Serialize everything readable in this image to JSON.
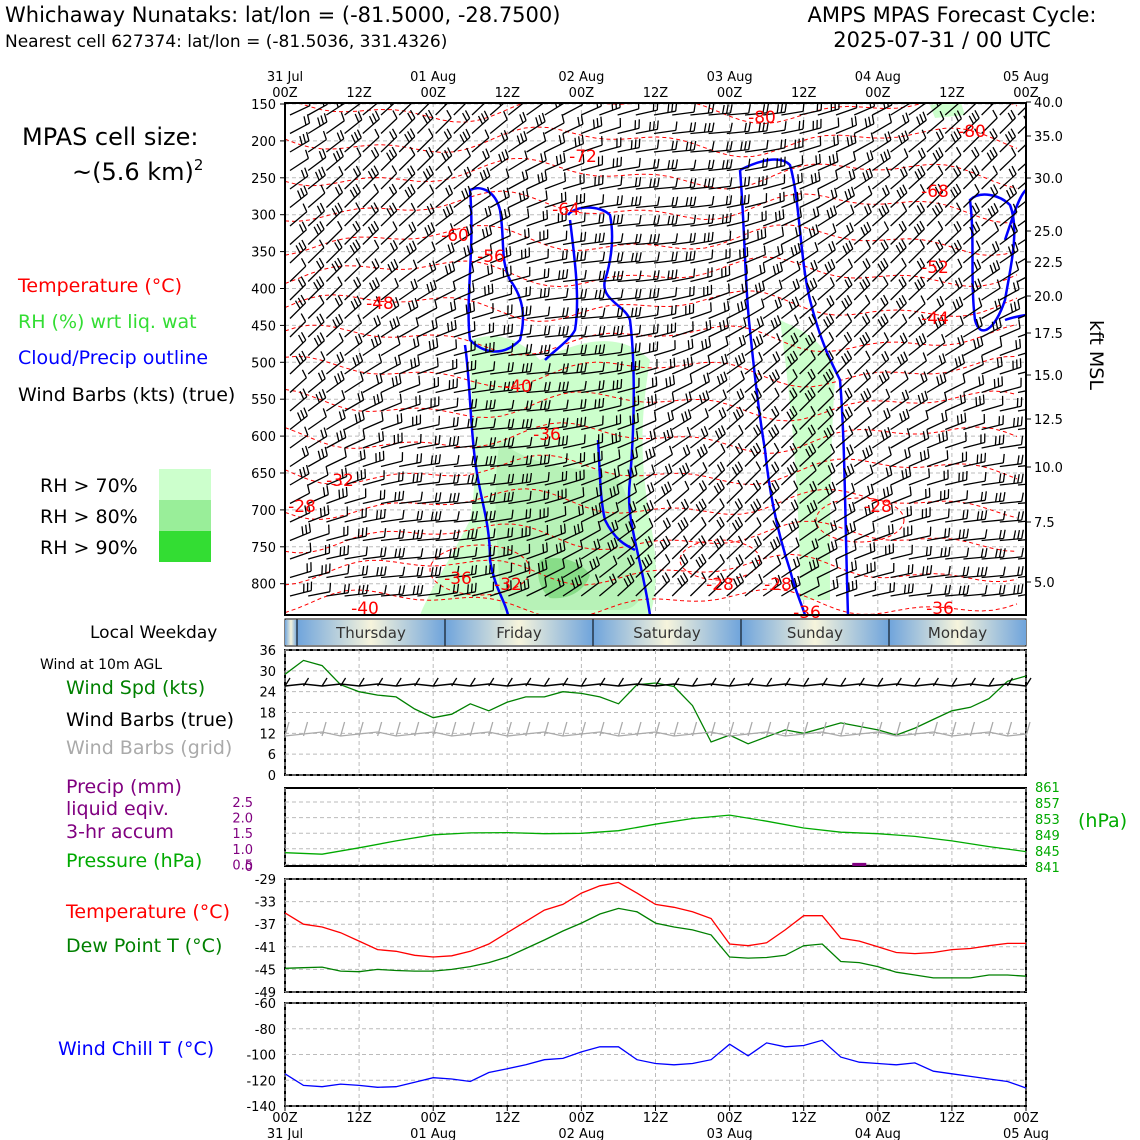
{
  "header": {
    "title_left": "Whichaway Nunataks: lat/lon = (-81.5000, -28.7500)",
    "subtitle_left": "Nearest cell 627374: lat/lon = (-81.5036, 331.4326)",
    "title_right_1": "AMPS MPAS Forecast Cycle:",
    "title_right_2": "2025-07-31 / 00 UTC",
    "cell_size_1": "MPAS cell size:",
    "cell_size_2": "~(5.6 km)",
    "cell_size_sup": "2"
  },
  "legend": {
    "temperature": "Temperature (°C)",
    "rh": "RH (%) wrt liq. wat",
    "cloud": "Cloud/Precip outline",
    "barbs": "Wind Barbs (kts) (true)",
    "rh70": "RH > 70%",
    "rh80": "RH > 80%",
    "rh90": "RH > 90%",
    "local_weekday": "Local Weekday",
    "wind10m": "Wind at 10m AGL",
    "wind_spd": "Wind Spd (kts)",
    "wind_barbs_true": "Wind Barbs (true)",
    "wind_barbs_grid": "Wind Barbs (grid)",
    "precip_1": "Precip (mm)",
    "precip_2": "liquid eqiv.",
    "precip_3": "3-hr accum",
    "pressure": "Pressure (hPa)",
    "hpa_unit": "(hPa)",
    "temp2": "Temperature (°C)",
    "dewpoint": "Dew Point T (°C)",
    "windchill": "Wind Chill T (°C)",
    "kft": "kft MSL"
  },
  "colors": {
    "temp": "#ff0000",
    "rh": "#33cc33",
    "cloud": "#0000ff",
    "dew": "#008000",
    "chill": "#0000ff",
    "precip": "#800080",
    "rh70": "#ccffcc",
    "rh80": "#99ee99",
    "rh90": "#33dd33"
  },
  "time_axis": {
    "top_dates": [
      "31 Jul",
      "",
      "01 Aug",
      "",
      "02 Aug",
      "",
      "03 Aug",
      "",
      "04 Aug",
      "",
      "05 Aug"
    ],
    "hours": [
      "00Z",
      "12Z",
      "00Z",
      "12Z",
      "00Z",
      "12Z",
      "00Z",
      "12Z",
      "00Z",
      "12Z",
      "00Z"
    ],
    "weekdays": [
      "Thursday",
      "Friday",
      "Saturday",
      "Sunday",
      "Monday"
    ]
  },
  "chart_data": [
    {
      "type": "line",
      "name": "Time-height cross section",
      "ylabel_right": "kft MSL",
      "pressure_ticks": [
        "150",
        "200",
        "250",
        "300",
        "350",
        "400",
        "450",
        "500",
        "550",
        "600",
        "650",
        "700",
        "750",
        "800"
      ],
      "kft_ticks": [
        "40.0",
        "35.0",
        "30.0",
        "25.0",
        "22.5",
        "20.0",
        "17.5",
        "15.0",
        "12.5",
        "10.0",
        "7.5",
        "5.0"
      ],
      "isotherm_labels": [
        "-80",
        "-80",
        "-72",
        "-68",
        "-64",
        "-60",
        "-56",
        "-52",
        "-48",
        "-44",
        "-40",
        "-36",
        "-32",
        "-28",
        "-28",
        "-36",
        "-32",
        "-28",
        "-28",
        "-36",
        "-40",
        "-36"
      ]
    },
    {
      "type": "line",
      "name": "Wind Spd (kts)",
      "ylim": [
        0,
        36
      ],
      "yticks": [
        "36",
        "30",
        "24",
        "18",
        "12",
        "6",
        "0"
      ],
      "x_hours": [
        0,
        3,
        6,
        9,
        12,
        15,
        18,
        21,
        24,
        27,
        30,
        33,
        36,
        39,
        42,
        45,
        48,
        51,
        54,
        57,
        60,
        63,
        66,
        69,
        72,
        75,
        78,
        81,
        84,
        87,
        90,
        93,
        96,
        99,
        102,
        105,
        108,
        111,
        114,
        117,
        120
      ],
      "values": [
        29,
        33,
        31.5,
        26,
        24,
        23,
        22.5,
        19,
        16.5,
        17.5,
        20.5,
        18.5,
        21,
        22.5,
        22.5,
        24,
        23.5,
        22.5,
        20.5,
        26,
        26.5,
        25.5,
        20,
        9.5,
        11.5,
        9,
        11,
        13,
        12,
        13.5,
        15,
        14,
        13,
        11.5,
        13.5,
        16,
        18.5,
        19.5,
        22,
        27,
        28.5
      ]
    },
    {
      "type": "line",
      "name": "Pressure (hPa)",
      "precip_yticks": [
        "2.5",
        "2.0",
        "1.5",
        "1.0",
        "0.5",
        "0"
      ],
      "pressure_yticks": [
        "861",
        "857",
        "853",
        "849",
        "845",
        "841"
      ],
      "pressure_ylim": [
        841,
        861
      ],
      "x_hours": [
        0,
        6,
        12,
        18,
        24,
        30,
        36,
        42,
        48,
        54,
        60,
        66,
        72,
        78,
        84,
        90,
        96,
        102,
        108,
        114,
        120
      ],
      "values": [
        844.5,
        844.1,
        845.8,
        847.6,
        849.2,
        849.7,
        849.8,
        849.5,
        849.6,
        850.3,
        852.0,
        853.5,
        854.4,
        852.8,
        851.0,
        849.9,
        849.5,
        848.8,
        847.6,
        846.1,
        844.8
      ],
      "precip_mm": {
        "x_hours": [
          93
        ],
        "values": [
          0.1
        ]
      }
    },
    {
      "type": "line",
      "name": "Temperature / Dew Point (°C)",
      "ylim": [
        -49,
        -29
      ],
      "yticks": [
        "-29",
        "-33",
        "-37",
        "-41",
        "-45",
        "-49"
      ],
      "x_hours": [
        0,
        3,
        6,
        9,
        12,
        15,
        18,
        21,
        24,
        27,
        30,
        33,
        36,
        39,
        42,
        45,
        48,
        51,
        54,
        57,
        60,
        63,
        66,
        69,
        72,
        75,
        78,
        81,
        84,
        87,
        90,
        93,
        96,
        99,
        102,
        105,
        108,
        111,
        114,
        117,
        120
      ],
      "series": [
        {
          "name": "Temperature (°C)",
          "color": "#ff0000",
          "values": [
            -35,
            -37,
            -37.5,
            -38.5,
            -40,
            -41.5,
            -41.8,
            -42.5,
            -42.8,
            -42.6,
            -41.8,
            -40.5,
            -38.5,
            -36.5,
            -34.5,
            -33.5,
            -31.5,
            -30.2,
            -29.6,
            -31.5,
            -33.5,
            -34,
            -34.8,
            -36,
            -40.5,
            -40.8,
            -40.3,
            -38,
            -35.5,
            -35.5,
            -39.5,
            -40,
            -41,
            -42,
            -42.2,
            -42,
            -41.5,
            -41.3,
            -40.8,
            -40.4,
            -40.4
          ]
        },
        {
          "name": "Dew Point T (°C)",
          "color": "#008000",
          "values": [
            -44.8,
            -44.7,
            -44.6,
            -45.3,
            -45.4,
            -45,
            -45.2,
            -45.3,
            -45.3,
            -45,
            -44.5,
            -43.8,
            -42.8,
            -41.3,
            -39.8,
            -38.2,
            -36.8,
            -35.2,
            -34.2,
            -34.8,
            -36.8,
            -37.5,
            -38,
            -38.9,
            -42.8,
            -43,
            -42.9,
            -42.5,
            -40.8,
            -40.5,
            -43.6,
            -43.8,
            -44.5,
            -45.5,
            -46,
            -46.5,
            -46.5,
            -46.5,
            -46,
            -46,
            -46.2
          ]
        }
      ]
    },
    {
      "type": "line",
      "name": "Wind Chill T (°C)",
      "ylim": [
        -140,
        -60
      ],
      "yticks": [
        "-60",
        "-80",
        "-100",
        "-120",
        "-140"
      ],
      "x_hours": [
        0,
        3,
        6,
        9,
        12,
        15,
        18,
        21,
        24,
        27,
        30,
        33,
        36,
        39,
        42,
        45,
        48,
        51,
        54,
        57,
        60,
        63,
        66,
        69,
        72,
        75,
        78,
        81,
        84,
        87,
        90,
        93,
        96,
        99,
        102,
        105,
        108,
        111,
        114,
        117,
        120
      ],
      "values": [
        -115,
        -124,
        -125,
        -123,
        -124,
        -125.5,
        -125,
        -121.5,
        -118,
        -119,
        -121,
        -114,
        -111,
        -108,
        -104,
        -103,
        -98,
        -94,
        -94,
        -104,
        -107,
        -108,
        -107,
        -104,
        -92,
        -101,
        -91,
        -94,
        -93,
        -89,
        -102,
        -106,
        -107,
        -108,
        -106.5,
        -113,
        -115,
        -117,
        -119,
        -121,
        -126
      ]
    }
  ]
}
